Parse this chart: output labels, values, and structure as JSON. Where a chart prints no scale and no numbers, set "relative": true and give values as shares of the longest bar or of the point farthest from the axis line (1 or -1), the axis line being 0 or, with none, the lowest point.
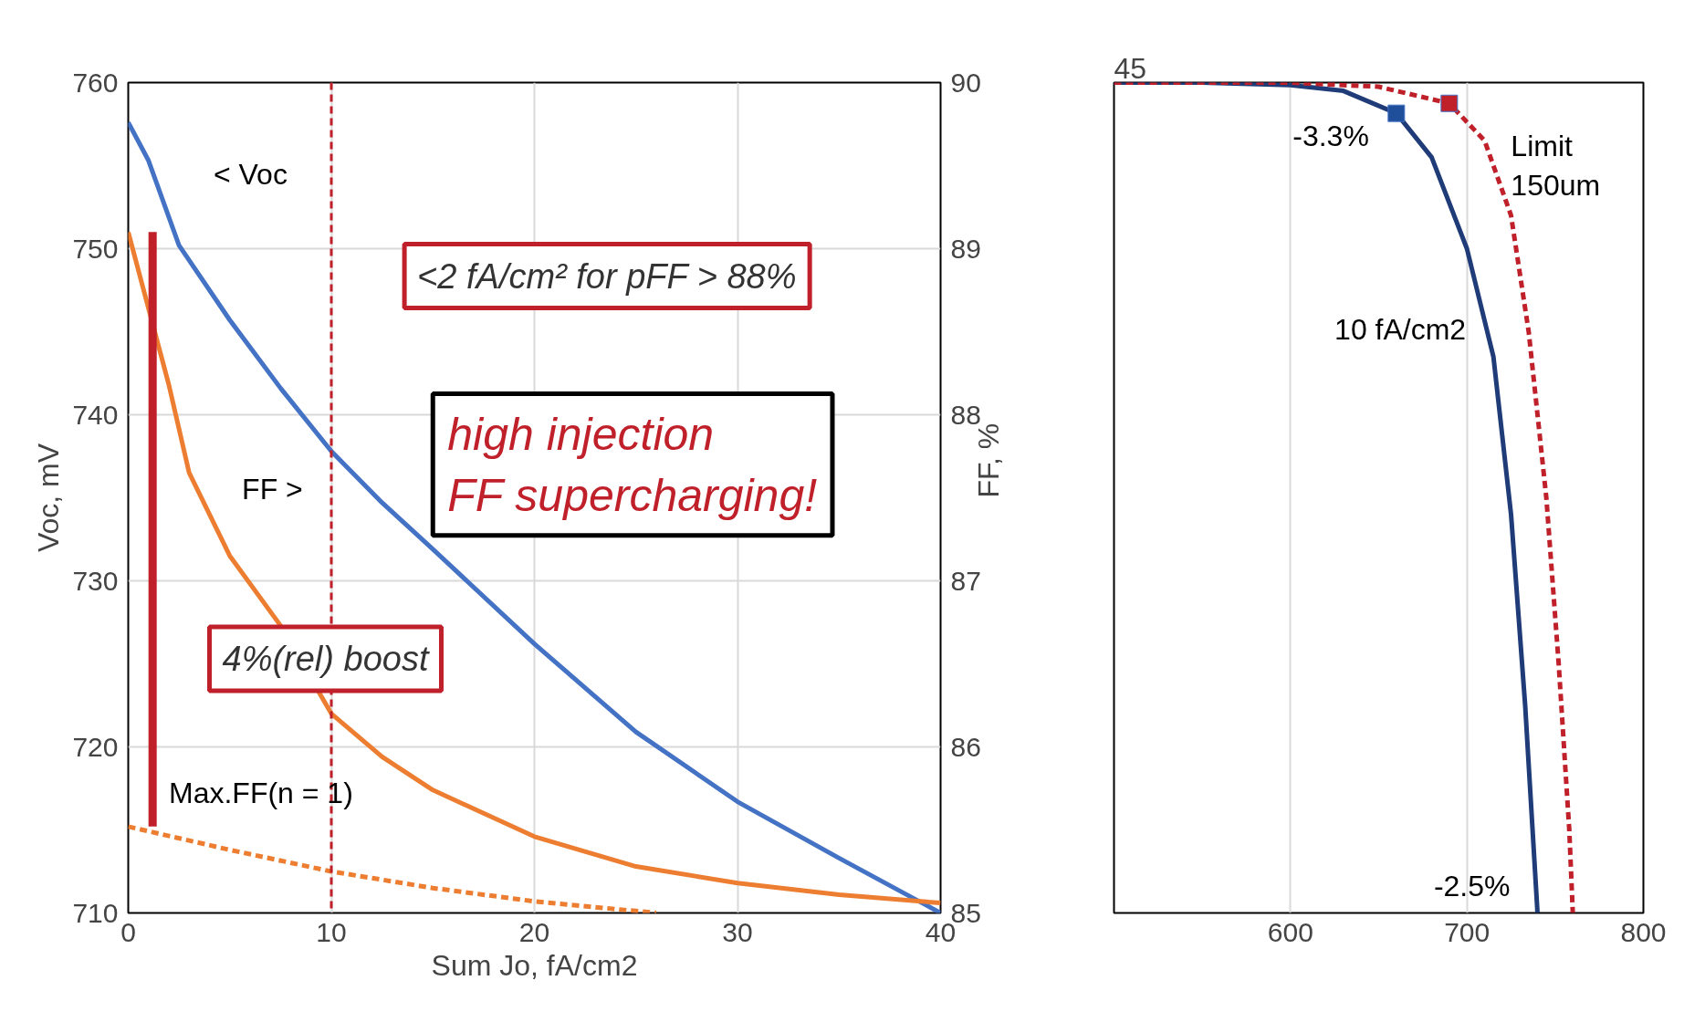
{
  "chart_data": [
    {
      "type": "line",
      "xlabel": "Sum Jo, fA/cm2",
      "ylabel": "Voc, mV",
      "y2label": "FF, %",
      "xlim": [
        0,
        40
      ],
      "xticks": [
        0,
        10,
        20,
        30,
        40
      ],
      "ylim": [
        710,
        760
      ],
      "yticks": [
        710,
        720,
        730,
        740,
        750,
        760
      ],
      "y2lim": [
        85,
        90
      ],
      "y2ticks": [
        85,
        86,
        87,
        88,
        89,
        90
      ],
      "grid": true,
      "series": [
        {
          "color": "#4472c4",
          "x": [
            0,
            1,
            2.5,
            5,
            7.5,
            10,
            12.5,
            15,
            20,
            25,
            30,
            35,
            40
          ],
          "values": [
            757.6,
            755.3,
            750.2,
            745.7,
            741.6,
            737.8,
            734.7,
            731.9,
            726.2,
            720.9,
            716.7,
            713.3,
            710
          ]
        },
        {
          "color": "#ed7d31",
          "axis": "y2",
          "x": [
            0,
            1,
            2,
            3,
            5,
            7.5,
            10,
            12.5,
            15,
            20,
            25,
            30,
            35,
            40
          ],
          "values": [
            89.1,
            88.64,
            88.18,
            87.65,
            87.15,
            86.73,
            86.2,
            85.94,
            85.74,
            85.46,
            85.28,
            85.18,
            85.11,
            85.06
          ]
        },
        {
          "color": "#ed7d31",
          "axis": "y2",
          "line_style": "dashed",
          "x": [
            0,
            5,
            10,
            15,
            20,
            26
          ],
          "values": [
            85.52,
            85.38,
            85.25,
            85.15,
            85.07,
            85.0
          ]
        }
      ],
      "ref_lines": [
        {
          "axis": "x",
          "value": 10,
          "color": "#c0202a",
          "line_style": "dashed"
        }
      ],
      "annotations": [
        "< Voc",
        "FF >",
        "Max.FF(n = 1)",
        "<2 fA/cm² for pFF > 88%",
        "high injection\nFF supercharging!",
        "4%(rel) boost"
      ]
    },
    {
      "type": "line",
      "relative": true,
      "xlim": [
        500,
        800
      ],
      "xticks": [
        600,
        700,
        800
      ],
      "grid": "x",
      "series": [
        {
          "color": "#1f3c78",
          "x": [
            500,
            550,
            600,
            630,
            660,
            680,
            700,
            715,
            725,
            733,
            740
          ],
          "values": [
            1,
            1,
            0.997,
            0.99,
            0.963,
            0.91,
            0.8,
            0.67,
            0.48,
            0.25,
            0
          ]
        },
        {
          "color": "#c0202a",
          "line_style": "dashed",
          "x": [
            500,
            600,
            650,
            690,
            710,
            725,
            735,
            745,
            752,
            758,
            760
          ],
          "values": [
            1,
            1,
            0.995,
            0.975,
            0.93,
            0.84,
            0.7,
            0.5,
            0.3,
            0.1,
            0
          ]
        },
        {
          "type": "scatter",
          "marker": "square",
          "color": "#1f4e9a",
          "x": [
            660
          ],
          "values": [
            0.963
          ]
        },
        {
          "type": "scatter",
          "marker": "square",
          "color": "#c0202a",
          "x": [
            690
          ],
          "values": [
            0.975
          ]
        }
      ],
      "annotations": [
        "45",
        {
          "text": "Limit\n150um",
          "x": 712,
          "y": 0.9
        },
        {
          "text": "-3.3%",
          "x": 660,
          "y": 0.963
        },
        {
          "text": "10 fA/cm2",
          "x": 715,
          "y": 0.67
        },
        {
          "text": "-2.5%",
          "x": 740,
          "y": 0
        }
      ]
    }
  ]
}
